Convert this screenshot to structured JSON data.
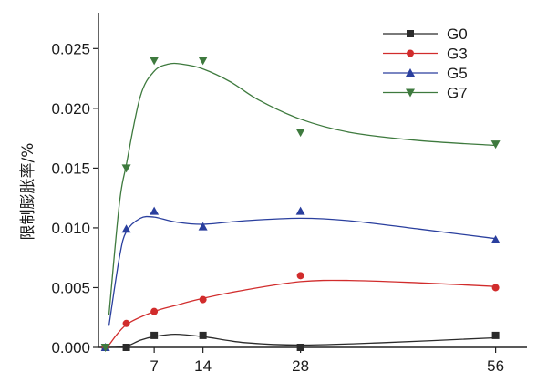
{
  "chart_data": {
    "type": "line",
    "xlabel": "",
    "ylabel": "限制膨胀率/%",
    "xlim": [
      -1,
      60.5
    ],
    "ylim": [
      0,
      0.028
    ],
    "x_ticks": [
      {
        "value": 7,
        "label": "7"
      },
      {
        "value": 14,
        "label": "14"
      },
      {
        "value": 28,
        "label": "28"
      },
      {
        "value": 56,
        "label": "56"
      }
    ],
    "y_ticks": [
      {
        "value": 0,
        "label": "0.000"
      },
      {
        "value": 0.005,
        "label": "0.005"
      },
      {
        "value": 0.01,
        "label": "0.010"
      },
      {
        "value": 0.015,
        "label": "0.015"
      },
      {
        "value": 0.02,
        "label": "0.020"
      },
      {
        "value": 0.025,
        "label": "0.025"
      }
    ],
    "grid": false,
    "legend_position": "top-right",
    "series": [
      {
        "name": "G0",
        "color": "#2b2b2b",
        "marker": "square",
        "points": [
          [
            0,
            0
          ],
          [
            3,
            0
          ],
          [
            7,
            0.001
          ],
          [
            14,
            0.001
          ],
          [
            28,
            0
          ],
          [
            56,
            0.001
          ]
        ],
        "curve": [
          [
            0.5,
            0
          ],
          [
            3,
            0.0001
          ],
          [
            5,
            0.0006
          ],
          [
            7,
            0.0009
          ],
          [
            10,
            0.0011
          ],
          [
            14,
            0.0009
          ],
          [
            20,
            0.0004
          ],
          [
            28,
            0.0002
          ],
          [
            40,
            0.0004
          ],
          [
            56,
            0.0008
          ]
        ]
      },
      {
        "name": "G3",
        "color": "#d12c2c",
        "marker": "circle",
        "points": [
          [
            0,
            0
          ],
          [
            3,
            0.002
          ],
          [
            7,
            0.003
          ],
          [
            14,
            0.004
          ],
          [
            28,
            0.006
          ],
          [
            56,
            0.005
          ]
        ],
        "curve": [
          [
            0.5,
            0.0002
          ],
          [
            3,
            0.0019
          ],
          [
            7,
            0.003
          ],
          [
            10,
            0.0035
          ],
          [
            14,
            0.0041
          ],
          [
            20,
            0.0048
          ],
          [
            28,
            0.0055
          ],
          [
            35,
            0.0056
          ],
          [
            45,
            0.0054
          ],
          [
            56,
            0.0051
          ]
        ]
      },
      {
        "name": "G5",
        "color": "#2a3f9e",
        "marker": "triangle-up",
        "points": [
          [
            0,
            0
          ],
          [
            3,
            0.0099
          ],
          [
            7,
            0.0114
          ],
          [
            14,
            0.0101
          ],
          [
            28,
            0.0114
          ],
          [
            56,
            0.009
          ]
        ],
        "curve": [
          [
            0.5,
            0.0018
          ],
          [
            2,
            0.0075
          ],
          [
            3,
            0.0097
          ],
          [
            5,
            0.0108
          ],
          [
            7,
            0.0109
          ],
          [
            10,
            0.0105
          ],
          [
            14,
            0.0103
          ],
          [
            20,
            0.0106
          ],
          [
            28,
            0.0108
          ],
          [
            35,
            0.0106
          ],
          [
            45,
            0.0099
          ],
          [
            56,
            0.0091
          ]
        ]
      },
      {
        "name": "G7",
        "color": "#3e7a3e",
        "marker": "triangle-down",
        "points": [
          [
            0,
            0
          ],
          [
            3,
            0.015
          ],
          [
            7,
            0.024
          ],
          [
            14,
            0.024
          ],
          [
            28,
            0.018
          ],
          [
            56,
            0.017
          ]
        ],
        "curve": [
          [
            0.5,
            0.0027
          ],
          [
            2,
            0.012
          ],
          [
            3,
            0.0153
          ],
          [
            5,
            0.021
          ],
          [
            7,
            0.0231
          ],
          [
            9,
            0.0237
          ],
          [
            11,
            0.0237
          ],
          [
            14,
            0.0233
          ],
          [
            18,
            0.0222
          ],
          [
            22,
            0.0207
          ],
          [
            28,
            0.0191
          ],
          [
            35,
            0.018
          ],
          [
            45,
            0.0173
          ],
          [
            56,
            0.0169
          ]
        ]
      }
    ]
  }
}
